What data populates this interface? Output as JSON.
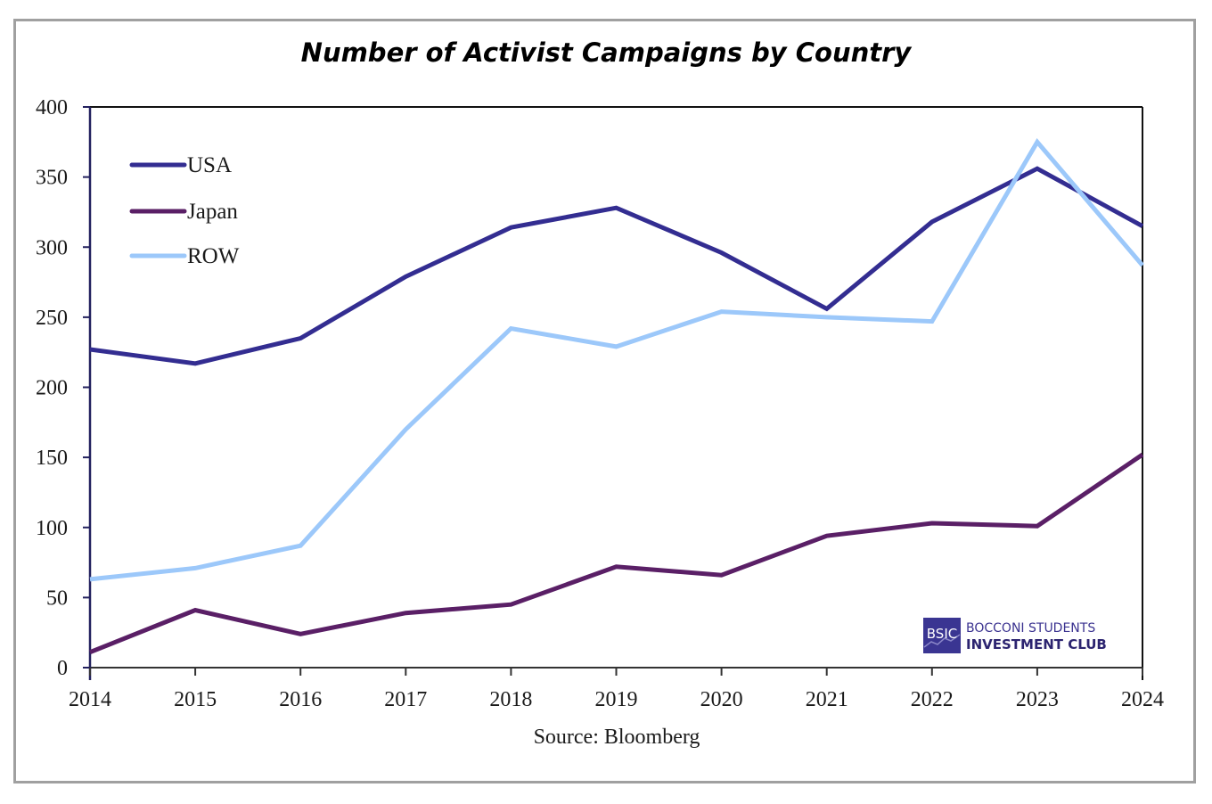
{
  "chart_data": {
    "type": "line",
    "title": "Number of Activist Campaigns by Country",
    "xlabel": "",
    "ylabel": "",
    "x": [
      "2014",
      "2015",
      "2016",
      "2017",
      "2018",
      "2019",
      "2020",
      "2021",
      "2022",
      "2023",
      "2024"
    ],
    "ylim": [
      0,
      400
    ],
    "yticks": [
      0,
      50,
      100,
      150,
      200,
      250,
      300,
      350,
      400
    ],
    "grid": false,
    "legend_position": "top-left",
    "series": [
      {
        "name": "USA",
        "color": "#332d91",
        "values": [
          227,
          217,
          235,
          279,
          314,
          328,
          296,
          256,
          318,
          356,
          315
        ]
      },
      {
        "name": "Japan",
        "color": "#5a1f66",
        "values": [
          11,
          41,
          24,
          39,
          45,
          72,
          66,
          94,
          103,
          101,
          152
        ]
      },
      {
        "name": "ROW",
        "color": "#9cc8fa",
        "values": [
          63,
          71,
          87,
          170,
          242,
          229,
          254,
          250,
          247,
          375,
          287
        ]
      }
    ],
    "source": "Source: Bloomberg"
  },
  "logo": {
    "badge": "BSIC",
    "line1": "BOCCONI STUDENTS",
    "line2": "INVESTMENT CLUB",
    "color": "#2c2470"
  }
}
